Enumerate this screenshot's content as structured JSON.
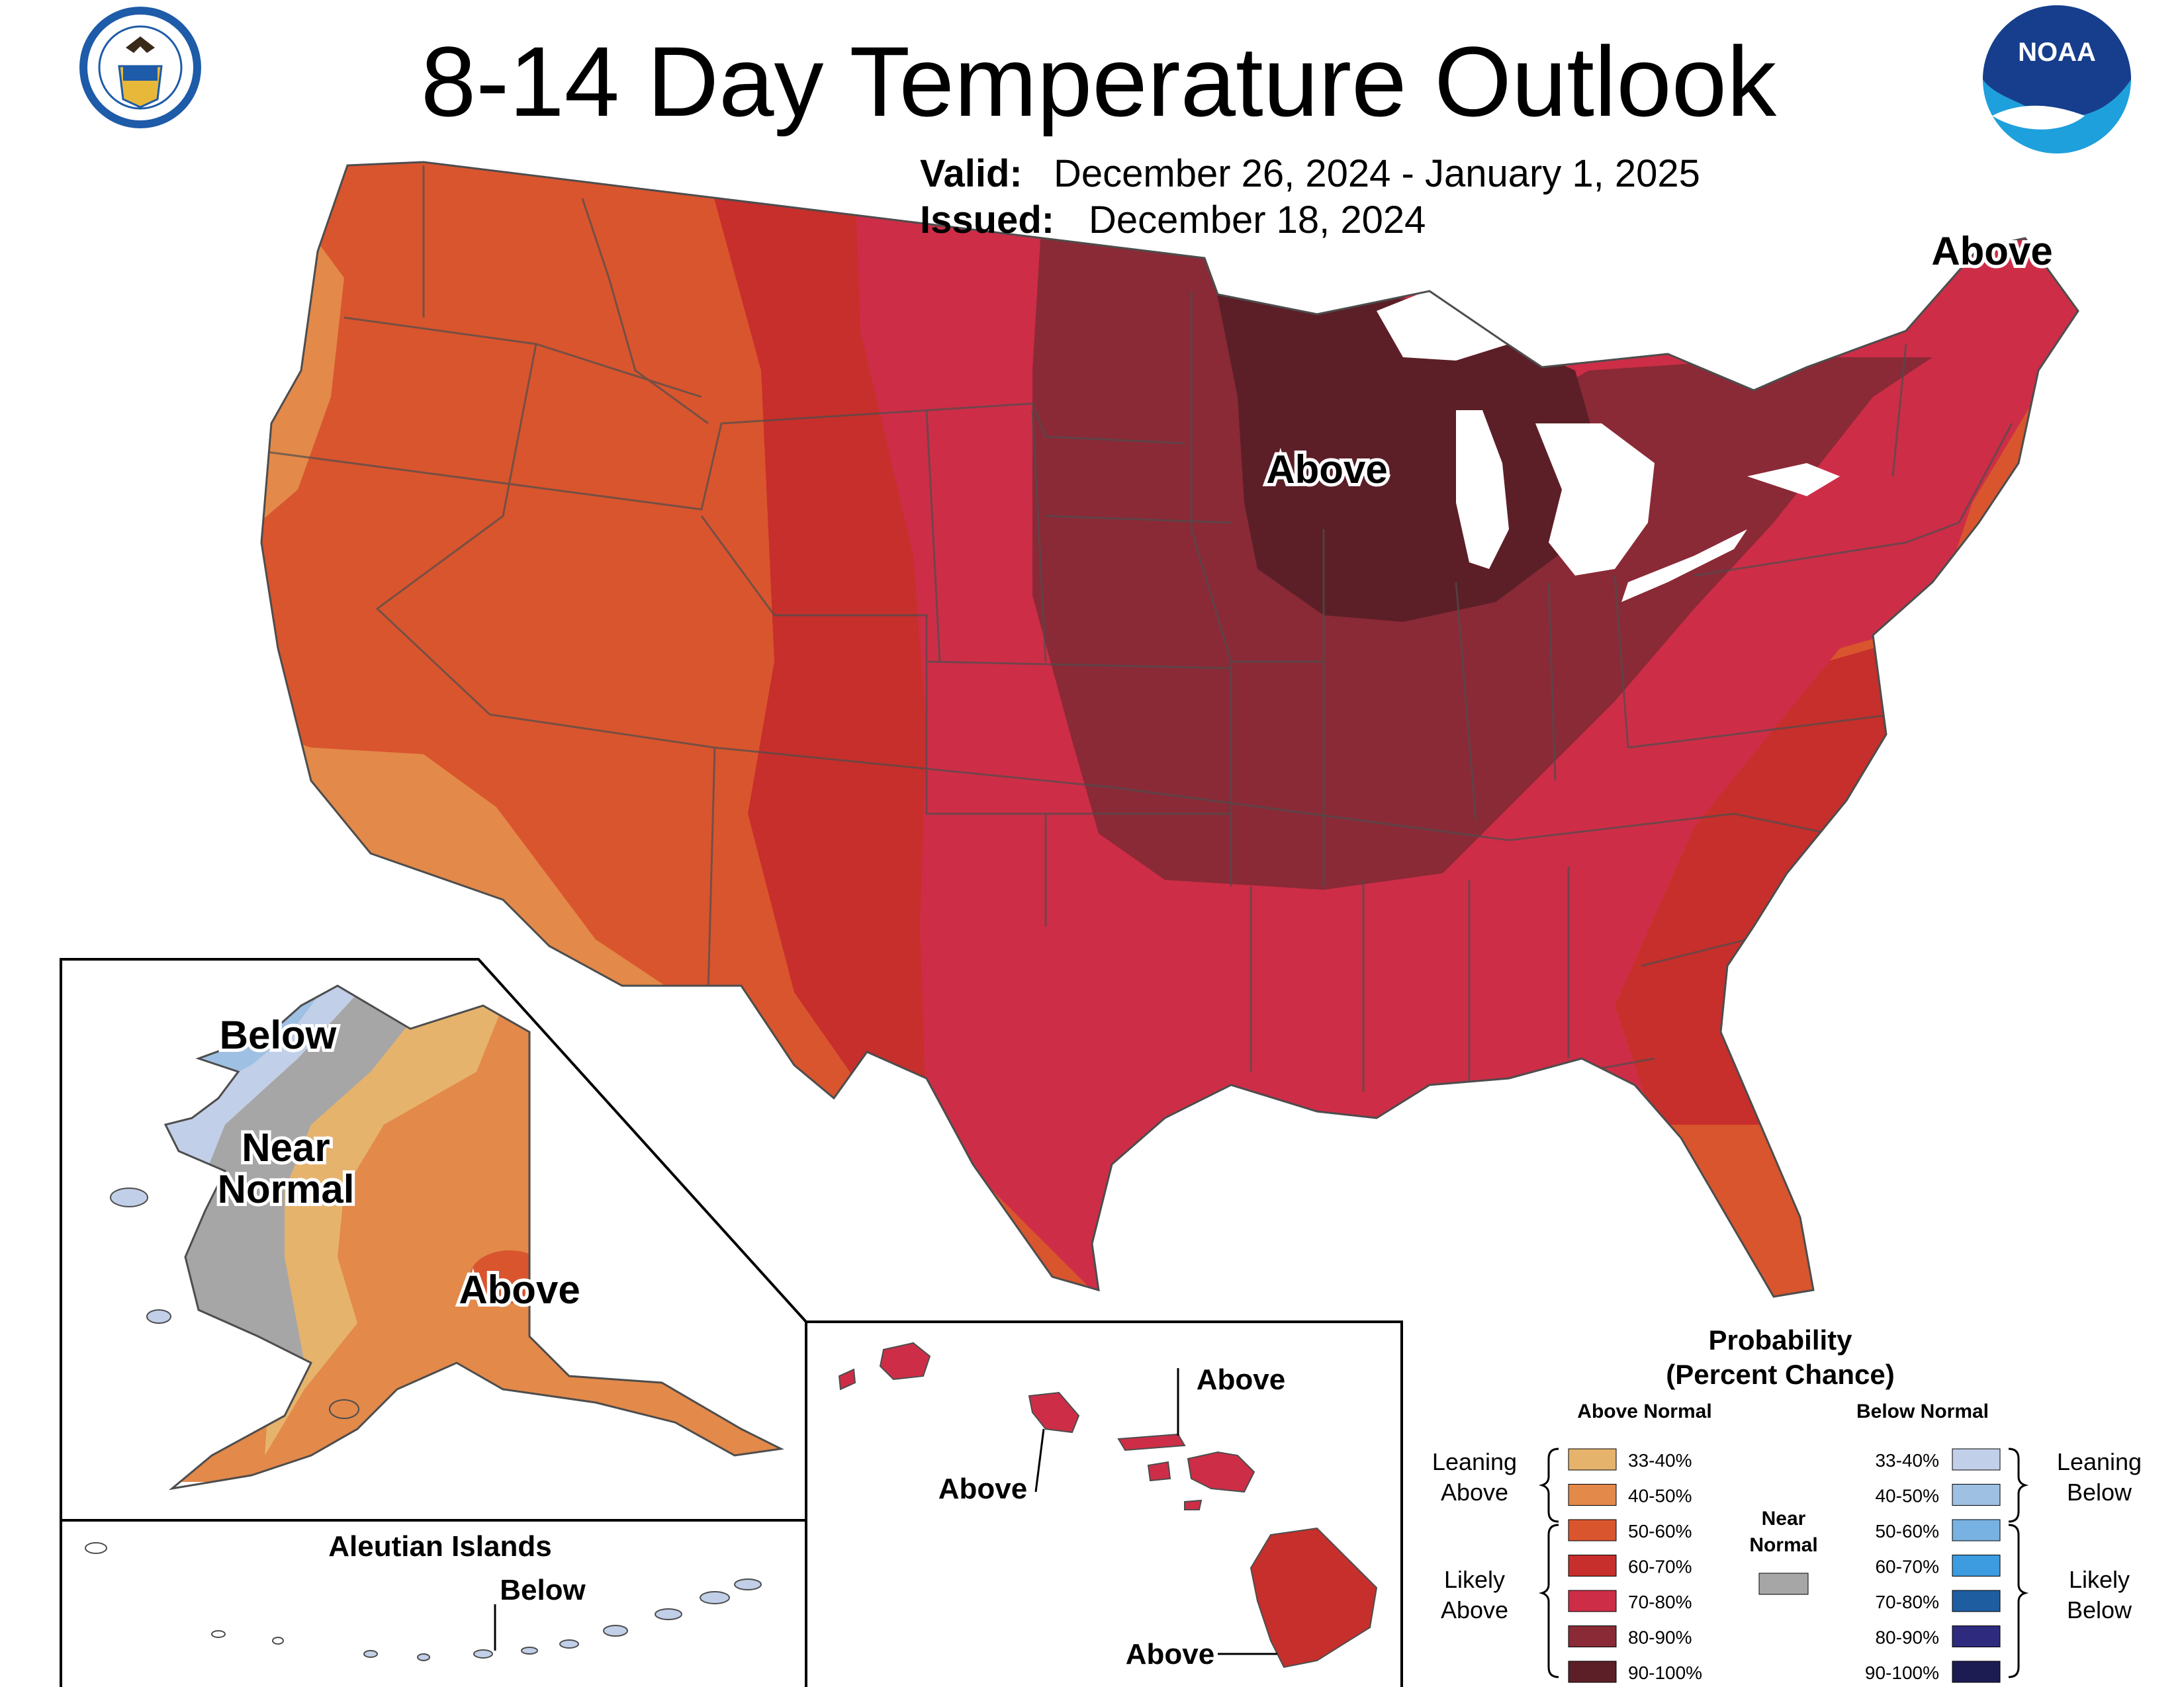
{
  "header": {
    "title": "8-14 Day Temperature Outlook",
    "valid_label": "Valid:",
    "valid_value": "December 26, 2024 - January 1, 2025",
    "issued_label": "Issued:",
    "issued_value": "December 18, 2024"
  },
  "logos": {
    "commerce_seal_text": "DEPARTMENT OF COMMERCE · UNITED STATES OF AMERICA",
    "noaa_text": "NOAA"
  },
  "map_labels": {
    "conus_upper_midwest": "Above",
    "conus_northeast": "Above",
    "alaska_below": "Below",
    "alaska_near_1": "Near",
    "alaska_near_2": "Normal",
    "alaska_above": "Above",
    "aleutian_title": "Aleutian Islands",
    "aleutian_below": "Below",
    "hawaii_kauai": "Above",
    "hawaii_maui": "Above",
    "hawaii_big_island": "Above"
  },
  "legend": {
    "title_1": "Probability",
    "title_2": "(Percent Chance)",
    "above_header": "Above Normal",
    "below_header": "Below Normal",
    "near_1": "Near",
    "near_2": "Normal",
    "leaning_above_1": "Leaning",
    "leaning_above_2": "Above",
    "likely_above_1": "Likely",
    "likely_above_2": "Above",
    "leaning_below_1": "Leaning",
    "leaning_below_2": "Below",
    "likely_below_1": "Likely",
    "likely_below_2": "Below",
    "above": [
      {
        "range": "33-40%",
        "color": "#E6B36D"
      },
      {
        "range": "40-50%",
        "color": "#E3894A"
      },
      {
        "range": "50-60%",
        "color": "#D9552E"
      },
      {
        "range": "60-70%",
        "color": "#C62F2B"
      },
      {
        "range": "70-80%",
        "color": "#CE2D47"
      },
      {
        "range": "80-90%",
        "color": "#8A2A36"
      },
      {
        "range": "90-100%",
        "color": "#5C1F27"
      }
    ],
    "below": [
      {
        "range": "33-40%",
        "color": "#C2CFE8"
      },
      {
        "range": "40-50%",
        "color": "#9EC0E2"
      },
      {
        "range": "50-60%",
        "color": "#78B2E2"
      },
      {
        "range": "60-70%",
        "color": "#3D9BE0"
      },
      {
        "range": "70-80%",
        "color": "#1F5DA1"
      },
      {
        "range": "80-90%",
        "color": "#2E2A7D"
      },
      {
        "range": "90-100%",
        "color": "#1C1B52"
      }
    ],
    "near_color": "#A6A6A6"
  }
}
